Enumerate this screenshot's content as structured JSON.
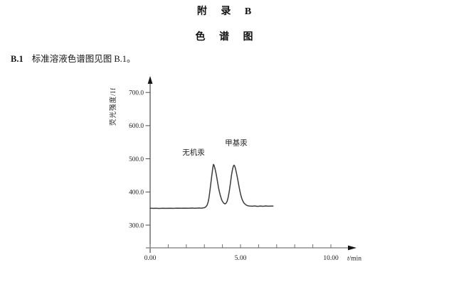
{
  "page": {
    "title1": "附 录 B",
    "title2": "色 谱 图",
    "paragraph": {
      "label": "B.1",
      "text": "标准溶液色谱图见图 B.1。"
    }
  },
  "chart_data": {
    "type": "line",
    "title": "",
    "xlabel": "t/min",
    "ylabel": "荧光强度/If",
    "xlim": [
      0,
      11.4
    ],
    "ylim": [
      230,
      745
    ],
    "grid": false,
    "legend": false,
    "baseline_intensity": 351,
    "x_minor_ticks": [
      0,
      1,
      2,
      3,
      4,
      5,
      6,
      7,
      8,
      9,
      10
    ],
    "x_major_ticks": [
      {
        "t": 0,
        "label": "0.00"
      },
      {
        "t": 5,
        "label": "5.00"
      },
      {
        "t": 10,
        "label": "10.00"
      }
    ],
    "y_ticks": [
      {
        "v": 300,
        "label": "300.0"
      },
      {
        "v": 400,
        "label": "400.0"
      },
      {
        "v": 500,
        "label": "500.0"
      },
      {
        "v": 600,
        "label": "600.0"
      },
      {
        "v": 700,
        "label": "700.0"
      }
    ],
    "annotations": [
      {
        "text": "无机汞",
        "t": 2.4,
        "intensity": 512
      },
      {
        "text": "甲基汞",
        "t": 4.76,
        "intensity": 541
      }
    ],
    "peaks": [
      {
        "name": "无机汞",
        "t": 3.5,
        "intensity": 483
      },
      {
        "name": "甲基汞",
        "t": 4.62,
        "intensity": 481
      }
    ],
    "colors": {
      "trace": "#3c3c3c",
      "x_axis": "#8f8f8f",
      "y_axis": "#4a4a4a",
      "tick": "#6f6f6f",
      "arrow": "#151515",
      "text": "#1c1c1c"
    },
    "series": [
      {
        "name": "标准溶液",
        "points": [
          [
            0,
            351
          ],
          [
            0.15,
            350.6
          ],
          [
            0.3,
            351
          ],
          [
            0.5,
            350.4
          ],
          [
            0.7,
            351
          ],
          [
            0.9,
            350.6
          ],
          [
            1.1,
            351
          ],
          [
            1.3,
            350.6
          ],
          [
            1.5,
            351.1
          ],
          [
            1.7,
            350.7
          ],
          [
            1.9,
            351.2
          ],
          [
            2.1,
            350.7
          ],
          [
            2.3,
            351.3
          ],
          [
            2.5,
            350.9
          ],
          [
            2.7,
            351.5
          ],
          [
            2.85,
            351.1
          ],
          [
            3.0,
            352.4
          ],
          [
            3.08,
            355
          ],
          [
            3.15,
            360
          ],
          [
            3.2,
            368
          ],
          [
            3.25,
            381
          ],
          [
            3.3,
            400
          ],
          [
            3.36,
            426
          ],
          [
            3.42,
            454
          ],
          [
            3.46,
            470
          ],
          [
            3.5,
            483
          ],
          [
            3.54,
            480
          ],
          [
            3.6,
            468
          ],
          [
            3.66,
            452
          ],
          [
            3.72,
            433
          ],
          [
            3.78,
            414
          ],
          [
            3.84,
            399
          ],
          [
            3.9,
            386
          ],
          [
            3.96,
            376
          ],
          [
            4.02,
            370
          ],
          [
            4.08,
            366
          ],
          [
            4.14,
            364
          ],
          [
            4.2,
            366
          ],
          [
            4.26,
            372
          ],
          [
            4.32,
            384
          ],
          [
            4.38,
            403
          ],
          [
            4.44,
            426
          ],
          [
            4.5,
            450
          ],
          [
            4.55,
            466
          ],
          [
            4.6,
            477
          ],
          [
            4.64,
            481
          ],
          [
            4.68,
            478
          ],
          [
            4.73,
            469
          ],
          [
            4.78,
            456
          ],
          [
            4.84,
            440
          ],
          [
            4.9,
            421
          ],
          [
            4.96,
            404
          ],
          [
            5.02,
            390
          ],
          [
            5.08,
            379
          ],
          [
            5.14,
            371
          ],
          [
            5.2,
            366
          ],
          [
            5.3,
            361
          ],
          [
            5.4,
            358.5
          ],
          [
            5.5,
            357.5
          ],
          [
            5.65,
            357
          ],
          [
            5.8,
            357.8
          ],
          [
            5.95,
            356.6
          ],
          [
            6.1,
            357.6
          ],
          [
            6.25,
            356.8
          ],
          [
            6.4,
            357.8
          ],
          [
            6.55,
            357
          ],
          [
            6.7,
            357.6
          ],
          [
            6.8,
            357.2
          ]
        ]
      }
    ]
  }
}
